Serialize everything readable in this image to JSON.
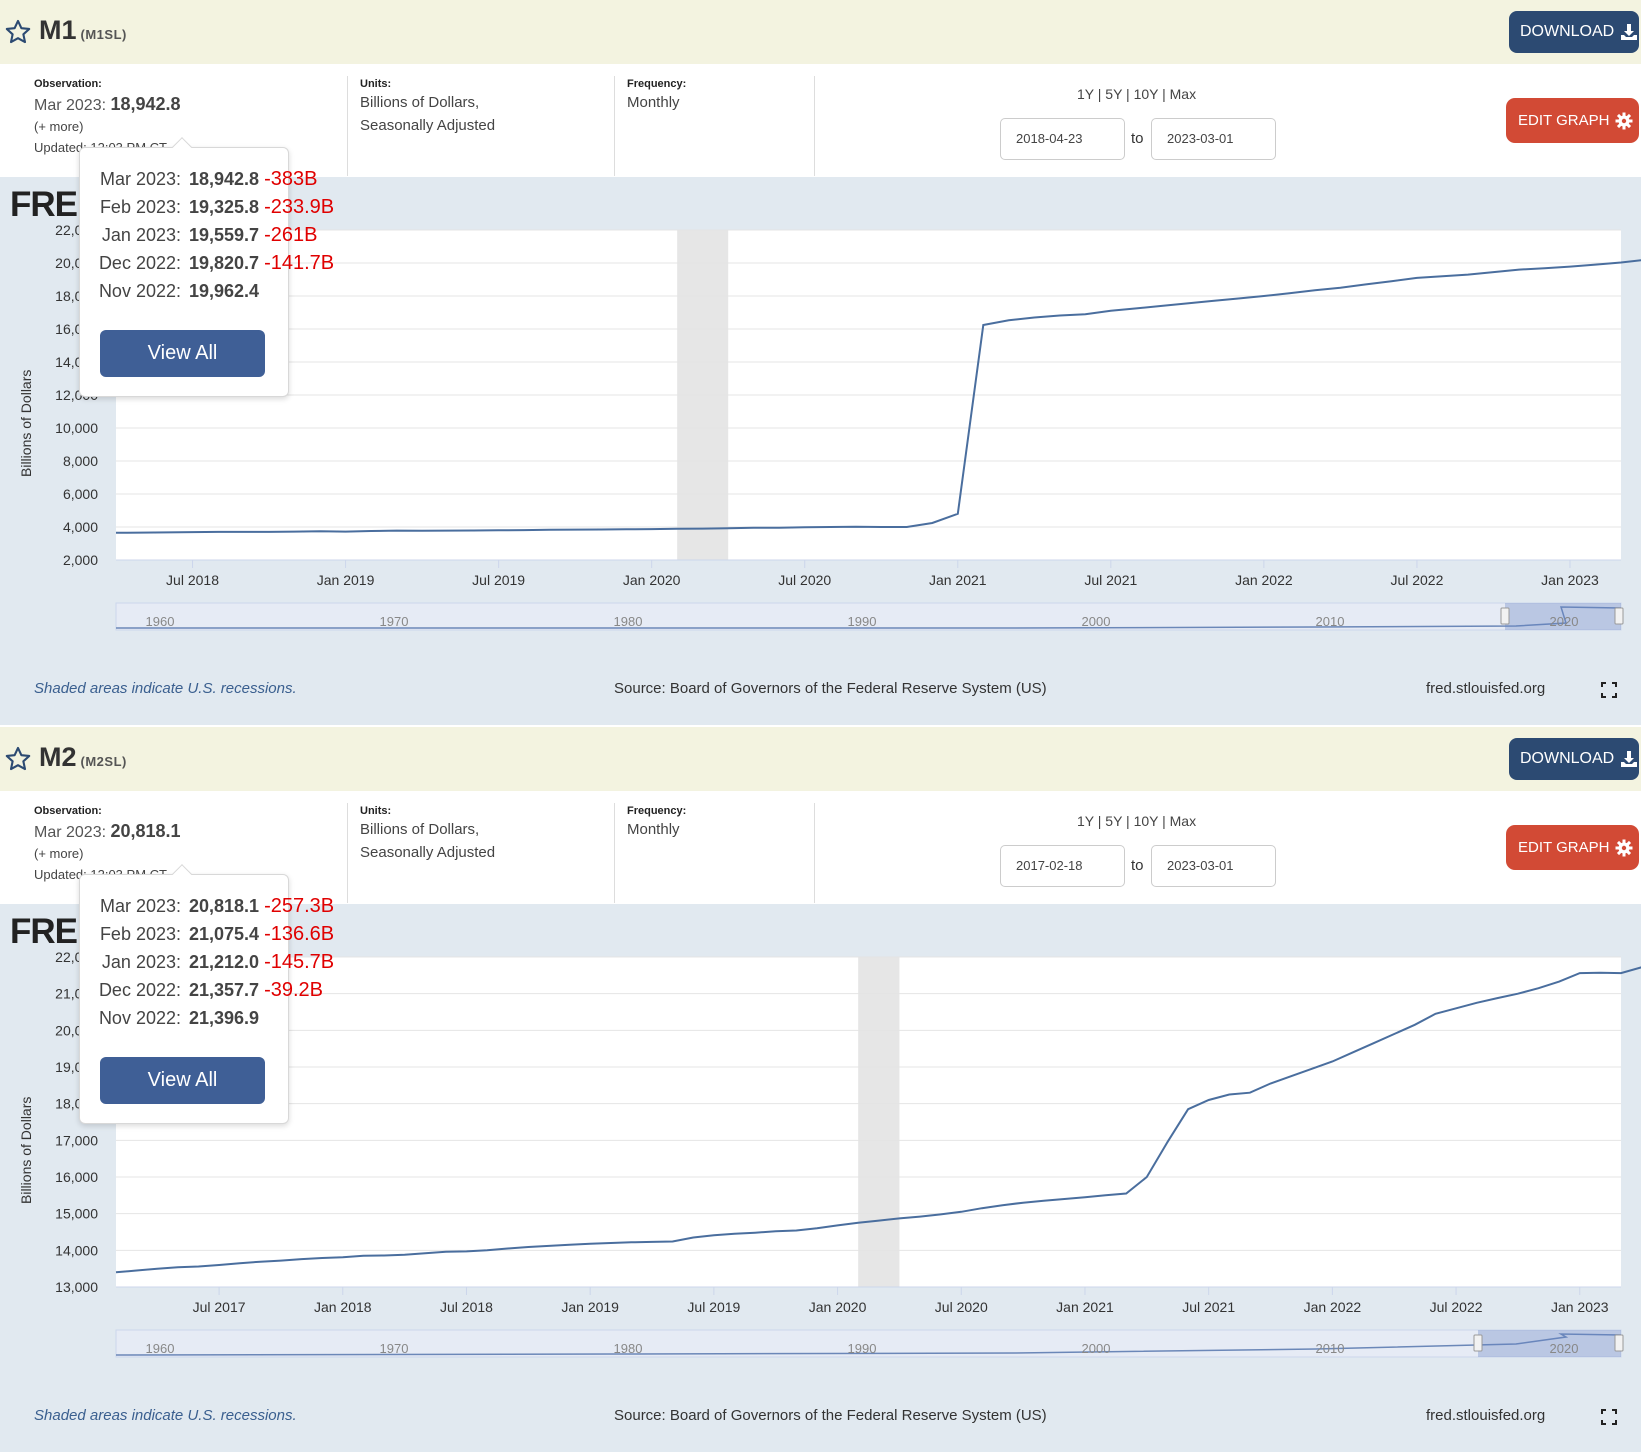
{
  "colors": {
    "header_bg": "#f3f3e0",
    "chart_bg": "#e1e9f0",
    "line": "#4a6e9e",
    "download_btn": "#2c4a72",
    "edit_btn": "#d24a35",
    "change_red": "#e00000",
    "recession_shade": "#e6e6e6"
  },
  "common": {
    "observation_label": "Observation:",
    "units_label": "Units:",
    "frequency_label": "Frequency:",
    "more_link": "(+ more)",
    "updated_text": "Updated: 12:03 PM CT",
    "units_line1": "Billions of Dollars,",
    "units_line2": "Seasonally Adjusted",
    "frequency_value": "Monthly",
    "ranges": "1Y | 5Y | 10Y | Max",
    "to_label": "to",
    "download_label": "DOWNLOAD",
    "edit_label": "EDIT GRAPH",
    "logo": "FRED",
    "ylabel": "Billions of Dollars",
    "shaded_note": "Shaded areas indicate U.S. recessions.",
    "source": "Source: Board of Governors of the Federal Reserve System (US)",
    "site": "fred.stlouisfed.org",
    "view_all": "View All",
    "nav_labels": [
      "1960",
      "1970",
      "1980",
      "1990",
      "2000",
      "2010",
      "2020"
    ]
  },
  "panels": [
    {
      "title": "M1",
      "code": "(M1SL)",
      "obs_date": "Mar 2023:",
      "obs_value": "18,942.8",
      "start_date": "2018-04-23",
      "end_date": "2023-03-01",
      "tooltip": [
        {
          "date": "Mar 2023:",
          "value": "18,942.8",
          "change": "-383B"
        },
        {
          "date": "Feb 2023:",
          "value": "19,325.8",
          "change": "-233.9B"
        },
        {
          "date": "Jan 2023:",
          "value": "19,559.7",
          "change": "-261B"
        },
        {
          "date": "Dec 2022:",
          "value": "19,820.7",
          "change": "-141.7B"
        },
        {
          "date": "Nov 2022:",
          "value": "19,962.4",
          "change": ""
        }
      ],
      "chart_data": {
        "type": "line",
        "x_start": "2018-04-01",
        "x_end": "2023-03-01",
        "ylim": [
          2000,
          22000
        ],
        "yticks": [
          2000,
          4000,
          6000,
          8000,
          10000,
          12000,
          14000,
          16000,
          18000,
          20000,
          22000
        ],
        "ytick_labels": [
          "2,000",
          "4,000",
          "6,000",
          "8,000",
          "10,000",
          "12,000",
          "14,000",
          "16,000",
          "18,000",
          "20,000",
          "22,000"
        ],
        "xticks": [
          {
            "label": "Jul 2018",
            "date": "2018-07-01"
          },
          {
            "label": "Jan 2019",
            "date": "2019-01-01"
          },
          {
            "label": "Jul 2019",
            "date": "2019-07-01"
          },
          {
            "label": "Jan 2020",
            "date": "2020-01-01"
          },
          {
            "label": "Jul 2020",
            "date": "2020-07-01"
          },
          {
            "label": "Jan 2021",
            "date": "2021-01-01"
          },
          {
            "label": "Jul 2021",
            "date": "2021-07-01"
          },
          {
            "label": "Jan 2022",
            "date": "2022-01-01"
          },
          {
            "label": "Jul 2022",
            "date": "2022-07-01"
          },
          {
            "label": "Jan 2023",
            "date": "2023-01-01"
          }
        ],
        "recession": [
          "2020-02-01",
          "2020-04-01"
        ],
        "series": [
          {
            "values": [
              3650,
              3660,
              3670,
              3690,
              3700,
              3700,
              3700,
              3720,
              3740,
              3720,
              3760,
              3780,
              3770,
              3780,
              3790,
              3800,
              3810,
              3830,
              3840,
              3850,
              3860,
              3870,
              3890,
              3900,
              3930,
              3950,
              3960,
              3980,
              4000,
              4020,
              4000,
              4000,
              4240,
              4800,
              16240,
              16530,
              16700,
              16820,
              16900,
              17100,
              17250,
              17400,
              17550,
              17700,
              17850,
              18000,
              18170,
              18350,
              18500,
              18700,
              18900,
              19100,
              19200,
              19300,
              19450,
              19600,
              19680,
              19780,
              19900,
              20030,
              20200,
              20380,
              20420,
              20430,
              20480,
              20500,
              20510,
              20500,
              20480,
              20470,
              20450,
              20400,
              20300,
              20200,
              20100,
              20000,
              19960,
              19820,
              19560,
              19330,
              18943
            ]
          }
        ]
      }
    },
    {
      "title": "M2",
      "code": "(M2SL)",
      "obs_date": "Mar 2023:",
      "obs_value": "20,818.1",
      "start_date": "2017-02-18",
      "end_date": "2023-03-01",
      "tooltip": [
        {
          "date": "Mar 2023:",
          "value": "20,818.1",
          "change": "-257.3B"
        },
        {
          "date": "Feb 2023:",
          "value": "21,075.4",
          "change": "-136.6B"
        },
        {
          "date": "Jan 2023:",
          "value": "21,212.0",
          "change": "-145.7B"
        },
        {
          "date": "Dec 2022:",
          "value": "21,357.7",
          "change": "-39.2B"
        },
        {
          "date": "Nov 2022:",
          "value": "21,396.9",
          "change": ""
        }
      ],
      "chart_data": {
        "type": "line",
        "x_start": "2017-02-01",
        "x_end": "2023-03-01",
        "ylim": [
          13000,
          22000
        ],
        "yticks": [
          13000,
          14000,
          15000,
          16000,
          17000,
          18000,
          19000,
          20000,
          21000,
          22000
        ],
        "ytick_labels": [
          "13,000",
          "14,000",
          "15,000",
          "16,000",
          "17,000",
          "18,000",
          "19,000",
          "20,000",
          "21,000",
          "22,000"
        ],
        "xticks": [
          {
            "label": "Jul 2017",
            "date": "2017-07-01"
          },
          {
            "label": "Jan 2018",
            "date": "2018-01-01"
          },
          {
            "label": "Jul 2018",
            "date": "2018-07-01"
          },
          {
            "label": "Jan 2019",
            "date": "2019-01-01"
          },
          {
            "label": "Jul 2019",
            "date": "2019-07-01"
          },
          {
            "label": "Jan 2020",
            "date": "2020-01-01"
          },
          {
            "label": "Jul 2020",
            "date": "2020-07-01"
          },
          {
            "label": "Jan 2021",
            "date": "2021-01-01"
          },
          {
            "label": "Jul 2021",
            "date": "2021-07-01"
          },
          {
            "label": "Jan 2022",
            "date": "2022-01-01"
          },
          {
            "label": "Jul 2022",
            "date": "2022-07-01"
          },
          {
            "label": "Jan 2023",
            "date": "2023-01-01"
          }
        ],
        "recession": [
          "2020-02-01",
          "2020-04-01"
        ],
        "series": [
          {
            "values": [
              13400,
              13450,
              13500,
              13540,
              13560,
              13600,
              13650,
              13690,
              13720,
              13760,
              13790,
              13810,
              13850,
              13860,
              13880,
              13920,
              13960,
              13970,
              14000,
              14050,
              14090,
              14120,
              14150,
              14180,
              14200,
              14220,
              14230,
              14240,
              14350,
              14410,
              14450,
              14480,
              14520,
              14540,
              14600,
              14680,
              14750,
              14810,
              14870,
              14920,
              14980,
              15050,
              15150,
              15230,
              15300,
              15350,
              15400,
              15450,
              15500,
              15550,
              16000,
              16950,
              17850,
              18100,
              18250,
              18300,
              18550,
              18750,
              18950,
              19150,
              19400,
              19650,
              19900,
              20150,
              20450,
              20600,
              20750,
              20880,
              21000,
              21150,
              21330,
              21560,
              21570,
              21560,
              21720,
              21700,
              21690,
              21690,
              21720,
              21670,
              21560,
              21450,
              21400,
              21358,
              21212,
              21075,
              20818
            ]
          }
        ]
      }
    }
  ]
}
